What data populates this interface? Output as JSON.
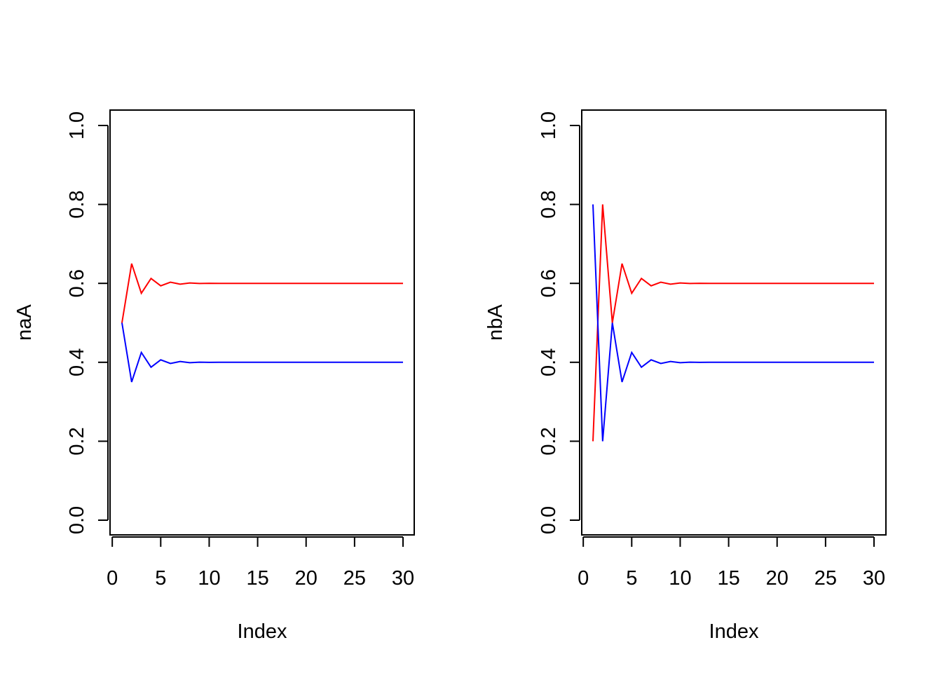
{
  "chart_data": [
    {
      "type": "line",
      "title": "",
      "xlabel": "Index",
      "ylabel": "naA",
      "xlim": [
        0,
        30
      ],
      "ylim": [
        0,
        1
      ],
      "x_ticks": [
        0,
        5,
        10,
        15,
        20,
        25,
        30
      ],
      "y_ticks": [
        0.0,
        0.2,
        0.4,
        0.6,
        0.8,
        1.0
      ],
      "x_tick_labels": [
        "0",
        "5",
        "10",
        "15",
        "20",
        "25",
        "30"
      ],
      "y_tick_labels": [
        "0.0",
        "0.2",
        "0.4",
        "0.6",
        "0.8",
        "1.0"
      ],
      "grid": false,
      "x": [
        1,
        2,
        3,
        4,
        5,
        6,
        7,
        8,
        9,
        10,
        11,
        12,
        13,
        14,
        15,
        16,
        17,
        18,
        19,
        20,
        21,
        22,
        23,
        24,
        25,
        26,
        27,
        28,
        29,
        30
      ],
      "series": [
        {
          "color": "#ff0000",
          "values": [
            0.5,
            0.65,
            0.575,
            0.6125,
            0.59375,
            0.603,
            0.598,
            0.601,
            0.5996,
            0.6002,
            0.5999,
            0.6,
            0.6,
            0.6,
            0.6,
            0.6,
            0.6,
            0.6,
            0.6,
            0.6,
            0.6,
            0.6,
            0.6,
            0.6,
            0.6,
            0.6,
            0.6,
            0.6,
            0.6,
            0.6
          ]
        },
        {
          "color": "#0000ff",
          "values": [
            0.5,
            0.35,
            0.425,
            0.3875,
            0.40625,
            0.397,
            0.402,
            0.399,
            0.4004,
            0.3998,
            0.4001,
            0.4,
            0.4,
            0.4,
            0.4,
            0.4,
            0.4,
            0.4,
            0.4,
            0.4,
            0.4,
            0.4,
            0.4,
            0.4,
            0.4,
            0.4,
            0.4,
            0.4,
            0.4,
            0.4
          ]
        }
      ]
    },
    {
      "type": "line",
      "title": "",
      "xlabel": "Index",
      "ylabel": "nbA",
      "xlim": [
        0,
        30
      ],
      "ylim": [
        0,
        1
      ],
      "x_ticks": [
        0,
        5,
        10,
        15,
        20,
        25,
        30
      ],
      "y_ticks": [
        0.0,
        0.2,
        0.4,
        0.6,
        0.8,
        1.0
      ],
      "x_tick_labels": [
        "0",
        "5",
        "10",
        "15",
        "20",
        "25",
        "30"
      ],
      "y_tick_labels": [
        "0.0",
        "0.2",
        "0.4",
        "0.6",
        "0.8",
        "1.0"
      ],
      "grid": false,
      "x": [
        1,
        2,
        3,
        4,
        5,
        6,
        7,
        8,
        9,
        10,
        11,
        12,
        13,
        14,
        15,
        16,
        17,
        18,
        19,
        20,
        21,
        22,
        23,
        24,
        25,
        26,
        27,
        28,
        29,
        30
      ],
      "series": [
        {
          "color": "#ff0000",
          "values": [
            0.2,
            0.8,
            0.5,
            0.65,
            0.575,
            0.6125,
            0.59375,
            0.603,
            0.598,
            0.601,
            0.5996,
            0.6002,
            0.5999,
            0.6,
            0.6,
            0.6,
            0.6,
            0.6,
            0.6,
            0.6,
            0.6,
            0.6,
            0.6,
            0.6,
            0.6,
            0.6,
            0.6,
            0.6,
            0.6,
            0.6
          ]
        },
        {
          "color": "#0000ff",
          "values": [
            0.8,
            0.2,
            0.5,
            0.35,
            0.425,
            0.3875,
            0.40625,
            0.397,
            0.402,
            0.399,
            0.4004,
            0.3998,
            0.4001,
            0.4,
            0.4,
            0.4,
            0.4,
            0.4,
            0.4,
            0.4,
            0.4,
            0.4,
            0.4,
            0.4,
            0.4,
            0.4,
            0.4,
            0.4,
            0.4,
            0.4
          ]
        }
      ]
    }
  ]
}
